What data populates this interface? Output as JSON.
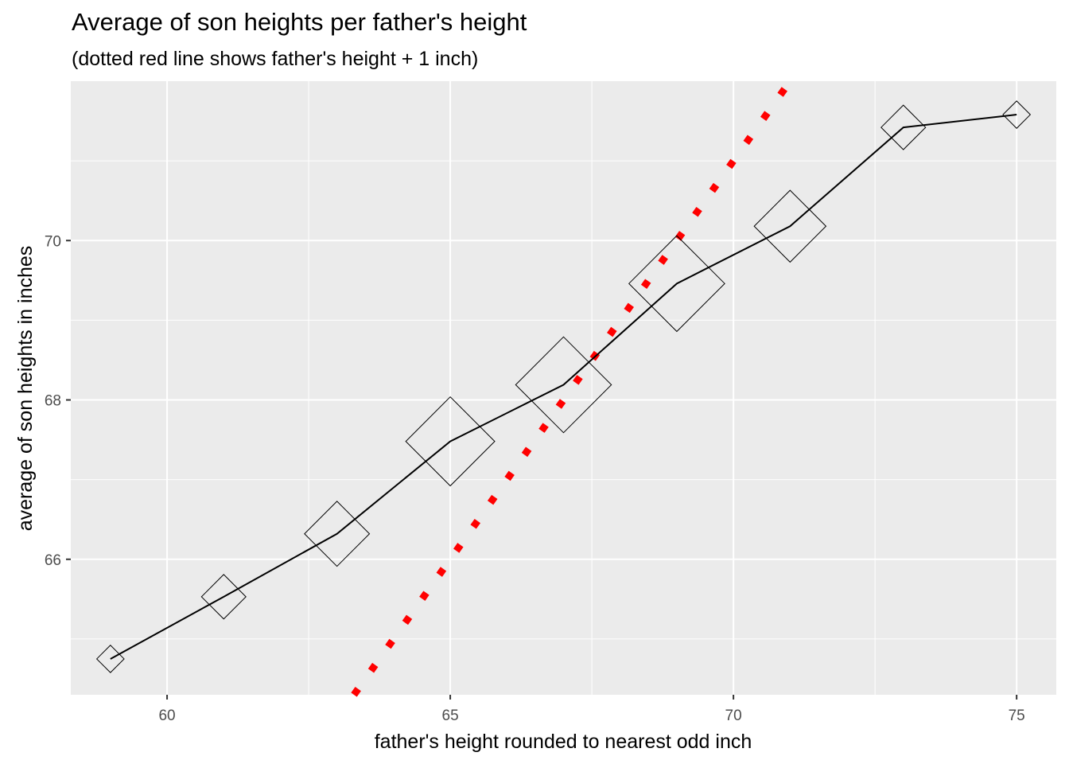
{
  "chart_data": {
    "type": "line",
    "title": "Average of son heights per father's height",
    "subtitle": "(dotted red line shows father's height + 1 inch)",
    "xlabel": "father's height rounded to nearest odd inch",
    "ylabel": "average of son heights in inches",
    "xlim": [
      58.3,
      75.7
    ],
    "ylim": [
      64.3,
      72.0
    ],
    "x_ticks": [
      60,
      65,
      70,
      75
    ],
    "y_ticks": [
      66,
      68,
      70
    ],
    "x_tick_labels": [
      "60",
      "65",
      "70",
      "75"
    ],
    "y_tick_labels": [
      "66",
      "68",
      "70"
    ],
    "grid": true,
    "series": [
      {
        "x": [
          59,
          61,
          63,
          65,
          67,
          69,
          71,
          73,
          75
        ],
        "y": [
          64.75,
          65.53,
          66.32,
          67.48,
          68.19,
          69.46,
          70.18,
          71.42,
          71.58
        ],
        "marker": "diamond",
        "color": "#000000",
        "marker_size": [
          8,
          13,
          19,
          26,
          28,
          28,
          21,
          13,
          8
        ]
      }
    ],
    "reference_line": {
      "intercept": 1,
      "slope": 1,
      "style": "dotted",
      "color": "#ff0000"
    }
  }
}
